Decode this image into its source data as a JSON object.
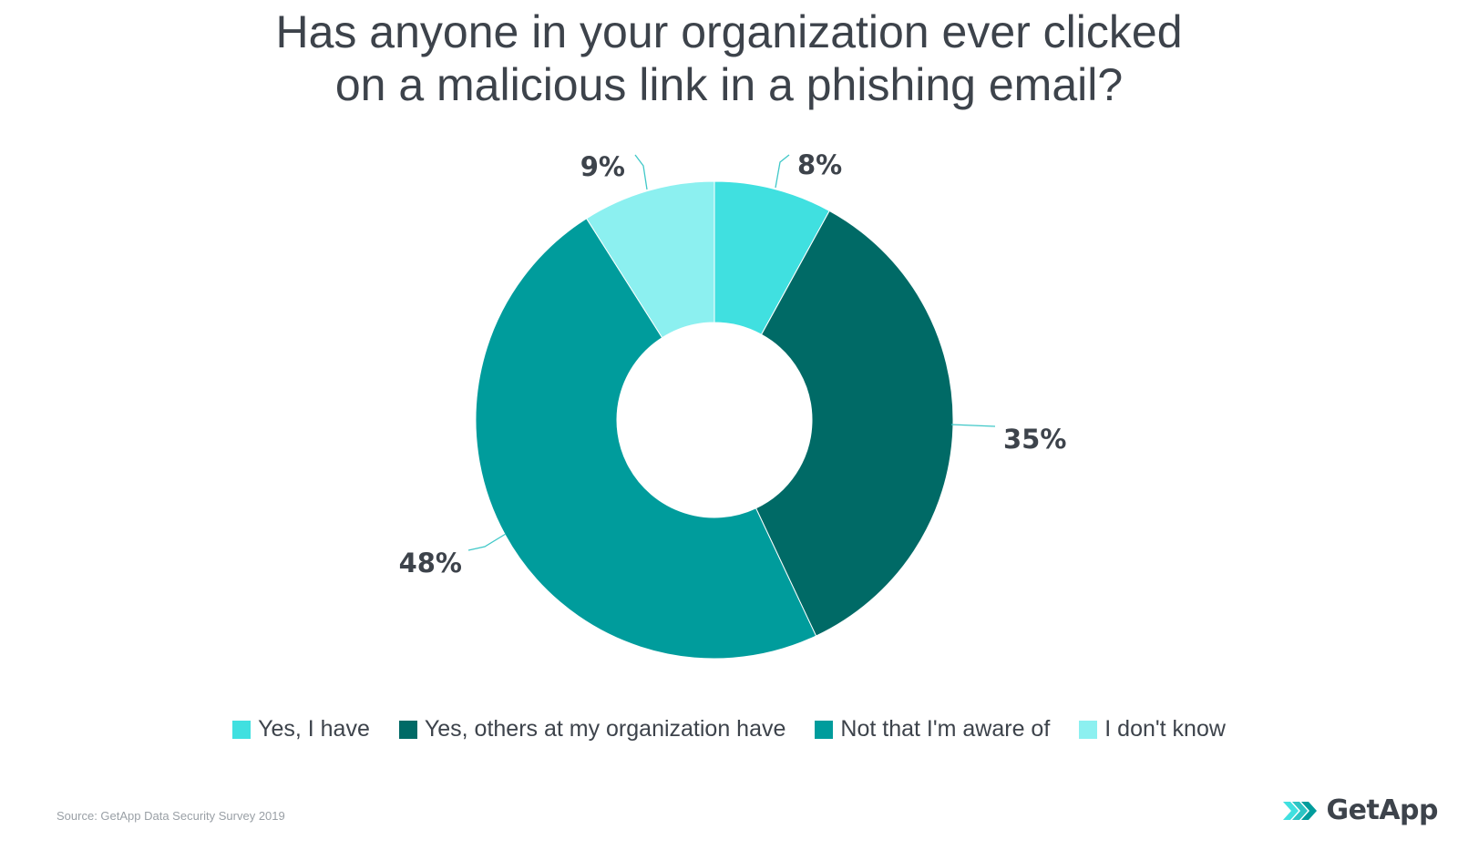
{
  "chart_data": {
    "type": "pie",
    "variant": "donut",
    "title": [
      "Has anyone in your organization ever clicked",
      "on a malicious link in a phishing email?"
    ],
    "slices": [
      {
        "label": "Yes, I have",
        "value": 8,
        "display": "8%",
        "color": "#40e0e0"
      },
      {
        "label": "Yes, others at my organization have",
        "value": 35,
        "display": "35%",
        "color": "#006a66"
      },
      {
        "label": "Not that I'm aware of",
        "value": 48,
        "display": "48%",
        "color": "#009c9c"
      },
      {
        "label": "I don't know",
        "value": 9,
        "display": "9%",
        "color": "#8cf0f0"
      }
    ],
    "legend_position": "bottom",
    "start_angle_deg": 0,
    "direction": "clockwise"
  },
  "footer": {
    "source": "Source: GetApp Data Security Survey 2019",
    "logo_text": "GetApp"
  },
  "colors": {
    "text": "#3d434b",
    "leader_line": "#40c8c8",
    "logo_accent": "#40e0e0"
  }
}
